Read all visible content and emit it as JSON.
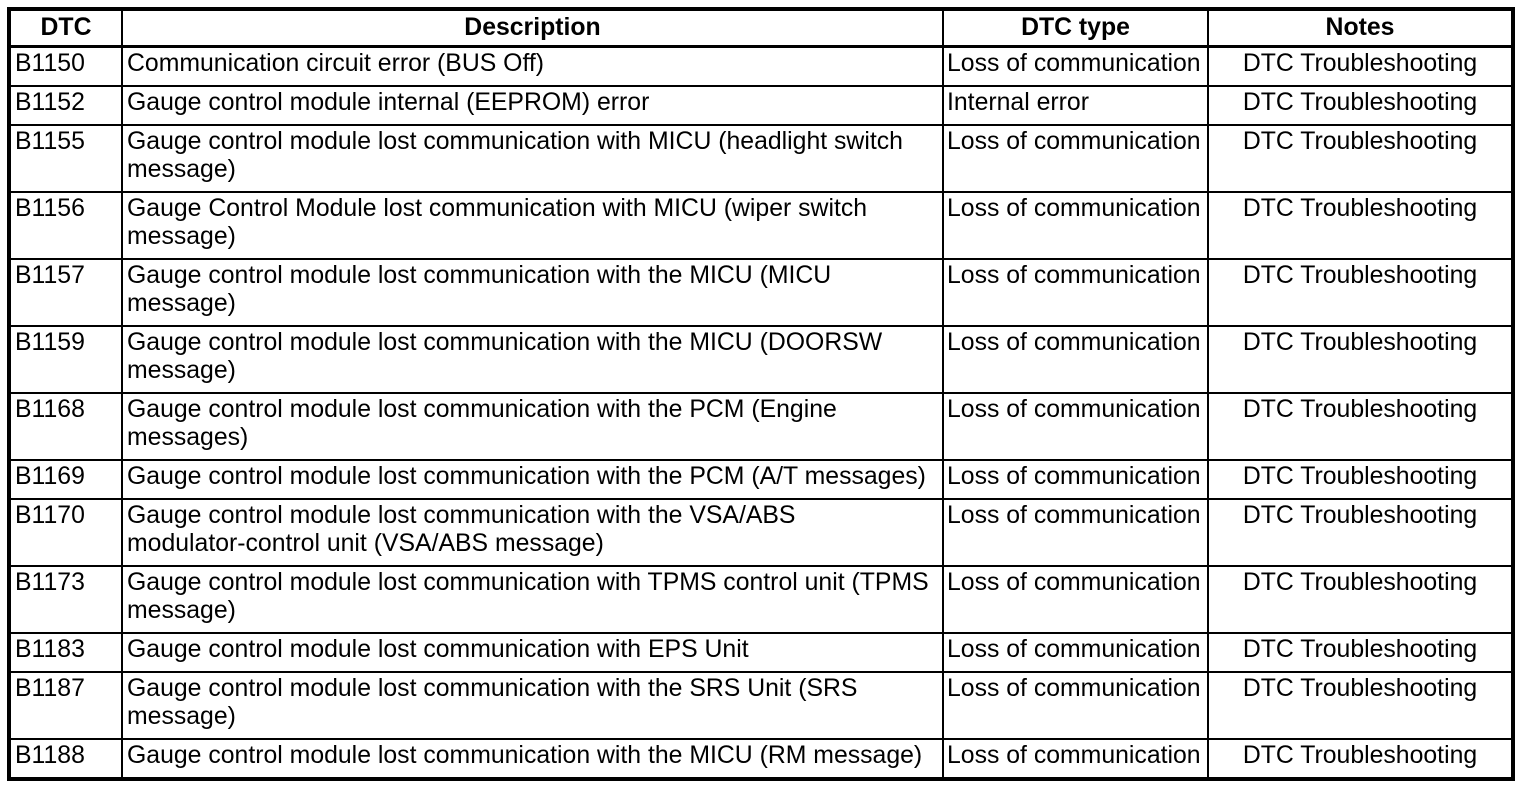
{
  "page": {
    "background_color": "#ffffff",
    "text_color": "#000000",
    "border_color": "#000000"
  },
  "table": {
    "headers": {
      "dtc": "DTC",
      "description": "Description",
      "type": "DTC type",
      "notes": "Notes"
    },
    "rows": [
      {
        "dtc": "B1150",
        "description": "Communication circuit error (BUS Off)",
        "type": "Loss of communication",
        "notes": "DTC Troubleshooting"
      },
      {
        "dtc": "B1152",
        "description": "Gauge control module internal (EEPROM) error",
        "type": "Internal error",
        "notes": "DTC Troubleshooting"
      },
      {
        "dtc": "B1155",
        "description": "Gauge control module lost communication with MICU (headlight switch message)",
        "type": "Loss of communication",
        "notes": "DTC Troubleshooting"
      },
      {
        "dtc": "B1156",
        "description": "Gauge Control Module lost communication with MICU (wiper switch message)",
        "type": "Loss of communication",
        "notes": "DTC Troubleshooting"
      },
      {
        "dtc": "B1157",
        "description": "Gauge control module lost communication with the MICU (MICU message)",
        "type": "Loss of communication",
        "notes": "DTC Troubleshooting"
      },
      {
        "dtc": "B1159",
        "description": "Gauge control module lost communication with the MICU (DOORSW message)",
        "type": "Loss of communication",
        "notes": "DTC Troubleshooting"
      },
      {
        "dtc": "B1168",
        "description": "Gauge control module lost communication with the PCM (Engine messages)",
        "type": "Loss of communication",
        "notes": "DTC Troubleshooting"
      },
      {
        "dtc": "B1169",
        "description": "Gauge control module lost communication with the PCM (A/T messages)",
        "type": "Loss of communication",
        "notes": "DTC Troubleshooting"
      },
      {
        "dtc": "B1170",
        "description": "Gauge control module lost communication with the VSA/ABS modulator‑control unit (VSA/ABS message)",
        "type": "Loss of communication",
        "notes": "DTC Troubleshooting"
      },
      {
        "dtc": "B1173",
        "description": "Gauge control module lost communication with TPMS control unit (TPMS message)",
        "type": "Loss of communication",
        "notes": "DTC Troubleshooting"
      },
      {
        "dtc": "B1183",
        "description": "Gauge control module lost communication with EPS Unit",
        "type": "Loss of communication",
        "notes": "DTC Troubleshooting"
      },
      {
        "dtc": "B1187",
        "description": "Gauge control module lost communication with the SRS Unit (SRS message)",
        "type": "Loss of communication",
        "notes": "DTC Troubleshooting"
      },
      {
        "dtc": "B1188",
        "description": "Gauge control module lost communication with the MICU (RM message)",
        "type": "Loss of communication",
        "notes": "DTC Troubleshooting"
      }
    ]
  }
}
